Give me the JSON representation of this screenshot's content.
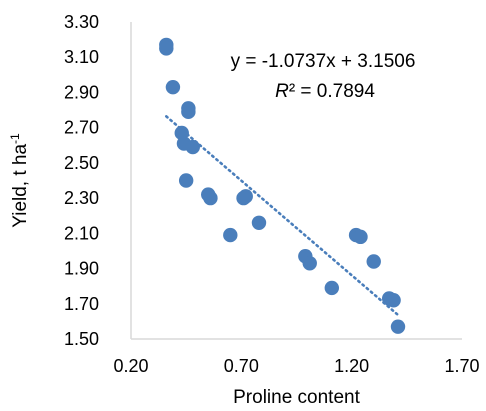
{
  "chart_data": {
    "type": "scatter",
    "title": "",
    "xlabel": "Proline content",
    "ylabel_main": "Yield, t ha",
    "ylabel_sup": "-1",
    "xlim": [
      0.2,
      1.7
    ],
    "ylim": [
      1.5,
      3.3
    ],
    "xticks": [
      0.2,
      0.7,
      1.2,
      1.7
    ],
    "xtick_labels": [
      "0.20",
      "0.70",
      "1.20",
      "1.70"
    ],
    "yticks": [
      1.5,
      1.7,
      1.9,
      2.1,
      2.3,
      2.5,
      2.7,
      2.9,
      3.1,
      3.3
    ],
    "ytick_labels": [
      "1.50",
      "1.70",
      "1.90",
      "2.10",
      "2.30",
      "2.50",
      "2.70",
      "2.90",
      "3.10",
      "3.30"
    ],
    "grid": false,
    "legend": "none",
    "marker_color": "#4a7ebb",
    "trendline_color": "#4a7ebb",
    "points": [
      {
        "x": 0.36,
        "y": 3.17
      },
      {
        "x": 0.36,
        "y": 3.15
      },
      {
        "x": 0.39,
        "y": 2.93
      },
      {
        "x": 0.43,
        "y": 2.67
      },
      {
        "x": 0.46,
        "y": 2.81
      },
      {
        "x": 0.46,
        "y": 2.79
      },
      {
        "x": 0.44,
        "y": 2.61
      },
      {
        "x": 0.48,
        "y": 2.59
      },
      {
        "x": 0.45,
        "y": 2.4
      },
      {
        "x": 0.55,
        "y": 2.32
      },
      {
        "x": 0.56,
        "y": 2.3
      },
      {
        "x": 0.65,
        "y": 2.09
      },
      {
        "x": 0.71,
        "y": 2.3
      },
      {
        "x": 0.72,
        "y": 2.31
      },
      {
        "x": 0.78,
        "y": 2.16
      },
      {
        "x": 0.99,
        "y": 1.97
      },
      {
        "x": 1.01,
        "y": 1.93
      },
      {
        "x": 1.11,
        "y": 1.79
      },
      {
        "x": 1.22,
        "y": 2.09
      },
      {
        "x": 1.24,
        "y": 2.08
      },
      {
        "x": 1.3,
        "y": 1.94
      },
      {
        "x": 1.37,
        "y": 1.73
      },
      {
        "x": 1.39,
        "y": 1.72
      },
      {
        "x": 1.41,
        "y": 1.57
      }
    ],
    "trendline": {
      "slope": -1.0737,
      "intercept": 3.1506,
      "x_range": [
        0.36,
        1.41
      ],
      "equation": "y = -1.0737x + 3.1506",
      "r2_symbol": "R",
      "r2_rest": "² = 0.7894"
    }
  }
}
